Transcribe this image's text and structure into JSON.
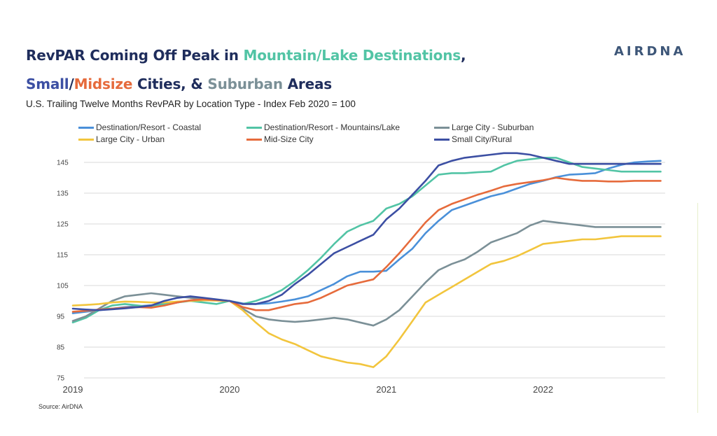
{
  "title": {
    "line1": {
      "part1": "RevPAR Coming Off Peak in ",
      "mountain": "Mountain/Lake Destinations",
      "comma": ","
    },
    "line2": {
      "small": "Small",
      "slash": "/",
      "midsize": "Midsize",
      "cities": " Cities, & ",
      "suburban": "Suburban",
      "areas": " Areas"
    }
  },
  "subtitle": "U.S. Trailing Twelve Months RevPAR by Location Type -  Index Feb 2020 = 100",
  "brand": "AIRDNA",
  "source": "Source: AirDNA",
  "colors": {
    "title_dark": "#1f2d5c",
    "mountain": "#52c4a5",
    "small": "#3c4fa3",
    "midsize": "#e66b3c",
    "suburban": "#7b9097"
  },
  "chart_data": {
    "type": "line",
    "title": "RevPAR Coming Off Peak in Mountain/Lake Destinations, Small/Midsize Cities, & Suburban Areas",
    "subtitle": "U.S. Trailing Twelve Months RevPAR by Location Type -  Index Feb 2020 = 100",
    "x_ticks": [
      "2019",
      "2020",
      "2021",
      "2022"
    ],
    "x_tick_values": [
      2019,
      2020,
      2021,
      2022
    ],
    "xlim": [
      2019,
      2022.77
    ],
    "ylim": [
      75,
      148
    ],
    "y_ticks": [
      75,
      85,
      95,
      105,
      115,
      125,
      135,
      145
    ],
    "grid": "horizontal",
    "legend_position": "top",
    "x": [
      2019.0,
      2019.083,
      2019.167,
      2019.25,
      2019.333,
      2019.417,
      2019.5,
      2019.583,
      2019.667,
      2019.75,
      2019.833,
      2019.917,
      2020.0,
      2020.083,
      2020.167,
      2020.25,
      2020.333,
      2020.417,
      2020.5,
      2020.583,
      2020.667,
      2020.75,
      2020.833,
      2020.917,
      2021.0,
      2021.083,
      2021.167,
      2021.25,
      2021.333,
      2021.417,
      2021.5,
      2021.583,
      2021.667,
      2021.75,
      2021.833,
      2021.917,
      2022.0,
      2022.083,
      2022.167,
      2022.25,
      2022.333,
      2022.417,
      2022.5,
      2022.583,
      2022.667,
      2022.75
    ],
    "series": [
      {
        "name": "Destination/Resort - Coastal",
        "color": "#4a90d9",
        "values": [
          96.0,
          96.5,
          97.0,
          97.5,
          98.0,
          98.3,
          98.6,
          99.0,
          99.5,
          100.2,
          100.5,
          100.3,
          100.0,
          99.2,
          99.0,
          99.2,
          99.8,
          100.5,
          101.5,
          103.5,
          105.5,
          108.0,
          109.5,
          109.5,
          109.8,
          113.5,
          117.0,
          122.0,
          126.0,
          129.5,
          131.0,
          132.5,
          134.0,
          135.0,
          136.5,
          138.0,
          139.0,
          140.2,
          141.0,
          141.2,
          141.5,
          143.0,
          144.2,
          145.0,
          145.3,
          145.5
        ]
      },
      {
        "name": "Destination/Resort - Mountains/Lake",
        "color": "#52c4a5",
        "values": [
          93.0,
          94.5,
          97.0,
          98.5,
          99.0,
          98.5,
          98.0,
          99.0,
          99.5,
          100.0,
          99.5,
          99.0,
          100.0,
          99.0,
          100.0,
          101.5,
          103.5,
          106.5,
          110.0,
          114.0,
          118.5,
          122.5,
          124.5,
          126.0,
          130.0,
          131.5,
          134.0,
          137.5,
          141.0,
          141.5,
          141.5,
          141.8,
          142.0,
          144.0,
          145.5,
          146.0,
          146.5,
          146.5,
          145.0,
          143.5,
          143.0,
          142.5,
          142.0,
          142.0,
          142.0,
          142.0
        ]
      },
      {
        "name": "Large City - Suburban",
        "color": "#7b9097",
        "values": [
          93.5,
          95.0,
          97.5,
          100.0,
          101.5,
          102.0,
          102.5,
          102.0,
          101.5,
          101.0,
          100.5,
          100.2,
          100.0,
          97.5,
          95.0,
          94.0,
          93.5,
          93.2,
          93.5,
          94.0,
          94.5,
          94.0,
          93.0,
          92.0,
          94.0,
          97.0,
          101.5,
          106.0,
          110.0,
          112.0,
          113.5,
          116.0,
          119.0,
          120.5,
          122.0,
          124.5,
          126.0,
          125.5,
          125.0,
          124.5,
          124.0,
          124.0,
          124.0,
          124.0,
          124.0,
          124.0
        ]
      },
      {
        "name": "Large City - Urban",
        "color": "#f2c53d",
        "values": [
          98.5,
          98.7,
          99.0,
          99.5,
          99.8,
          99.7,
          99.5,
          99.5,
          99.8,
          100.0,
          100.2,
          100.1,
          100.0,
          97.0,
          93.0,
          89.5,
          87.5,
          86.0,
          84.0,
          82.0,
          81.0,
          80.0,
          79.5,
          78.5,
          82.0,
          87.5,
          93.5,
          99.5,
          102.0,
          104.5,
          107.0,
          109.5,
          112.0,
          113.0,
          114.5,
          116.5,
          118.5,
          119.0,
          119.5,
          120.0,
          120.0,
          120.5,
          121.0,
          121.0,
          121.0,
          121.0
        ]
      },
      {
        "name": "Mid-Size City",
        "color": "#e66b3c",
        "values": [
          96.5,
          96.8,
          97.2,
          97.5,
          97.8,
          98.0,
          97.8,
          98.5,
          99.5,
          100.2,
          100.5,
          100.3,
          100.0,
          98.0,
          97.0,
          97.0,
          98.0,
          99.0,
          99.5,
          101.0,
          103.0,
          105.0,
          106.0,
          107.0,
          111.0,
          115.5,
          120.5,
          125.5,
          129.5,
          131.5,
          133.0,
          134.5,
          135.8,
          137.2,
          138.0,
          138.6,
          139.2,
          140.0,
          139.4,
          139.0,
          139.0,
          138.8,
          138.8,
          139.0,
          139.0,
          139.0
        ]
      },
      {
        "name": "Small City/Rural",
        "color": "#3c4fa3",
        "values": [
          97.5,
          97.2,
          97.0,
          97.3,
          97.6,
          98.0,
          98.5,
          100.0,
          101.0,
          101.5,
          101.0,
          100.5,
          100.0,
          99.0,
          99.0,
          100.0,
          102.0,
          105.5,
          108.5,
          112.0,
          115.5,
          117.5,
          119.5,
          121.5,
          126.5,
          130.0,
          134.5,
          139.0,
          144.0,
          145.5,
          146.5,
          147.0,
          147.5,
          148.0,
          148.0,
          147.5,
          146.5,
          145.5,
          144.5,
          144.5,
          144.5,
          144.5,
          144.5,
          144.5,
          144.5,
          144.5
        ]
      }
    ]
  }
}
